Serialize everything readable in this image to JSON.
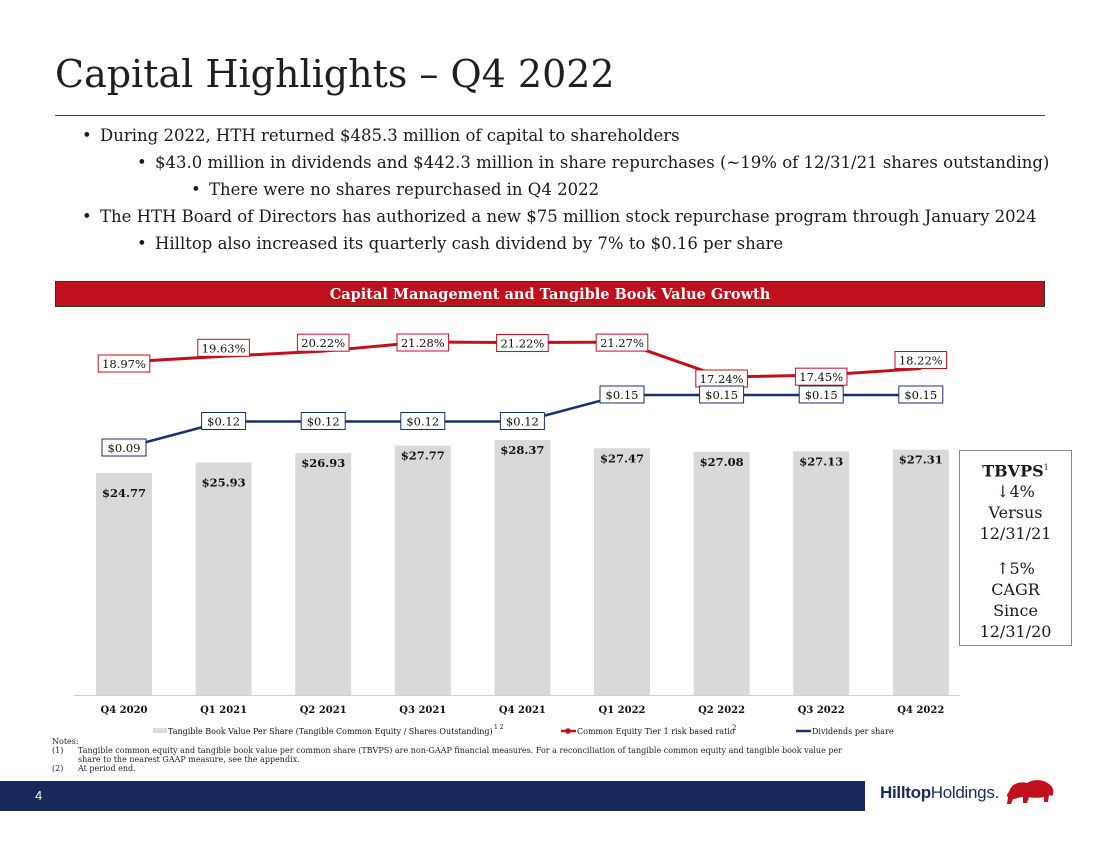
{
  "title": "Capital Highlights – Q4 2022",
  "bullets": [
    {
      "level": 1,
      "text": "During 2022, HTH returned $485.3 million of capital to shareholders"
    },
    {
      "level": 2,
      "text": "$43.0 million in dividends and $442.3 million in share repurchases (~19% of 12/31/21 shares outstanding)"
    },
    {
      "level": 3,
      "text": "There were no shares repurchased in Q4 2022"
    },
    {
      "level": 1,
      "text": "The HTH Board of Directors has authorized a new $75 million stock repurchase program through January 2024"
    },
    {
      "level": 2,
      "text": "Hilltop also increased its quarterly cash dividend by 7% to $0.16 per share"
    }
  ],
  "banner": "Capital Management and Tangible Book Value Growth",
  "chart_data": {
    "type": "bar",
    "categories": [
      "Q4 2020",
      "Q1 2021",
      "Q2 2021",
      "Q3 2021",
      "Q4 2021",
      "Q1 2022",
      "Q2 2022",
      "Q3 2022",
      "Q4 2022"
    ],
    "series": [
      {
        "name": "Tangible Book Value Per Share (Tangible Common Equity / Shares Outstanding)",
        "type": "bar",
        "color": "#d9d9d9",
        "values": [
          24.77,
          25.93,
          26.93,
          27.77,
          28.37,
          27.47,
          27.08,
          27.13,
          27.31
        ],
        "labels": [
          "$24.77",
          "$25.93",
          "$26.93",
          "$27.77",
          "$28.37",
          "$27.47",
          "$27.08",
          "$27.13",
          "$27.31"
        ]
      },
      {
        "name": "Common Equity Tier 1 risk based ratio",
        "type": "line",
        "color": "#c0101e",
        "values": [
          18.97,
          19.63,
          20.22,
          21.28,
          21.22,
          21.27,
          17.24,
          17.45,
          18.22
        ],
        "labels": [
          "18.97%",
          "19.63%",
          "20.22%",
          "21.28%",
          "21.22%",
          "21.27%",
          "17.24%",
          "17.45%",
          "18.22%"
        ]
      },
      {
        "name": "Dividends per share",
        "type": "line",
        "color": "#1c2f6b",
        "values": [
          0.09,
          0.12,
          0.12,
          0.12,
          0.12,
          0.15,
          0.15,
          0.15,
          0.15
        ],
        "labels": [
          "$0.09",
          "$0.12",
          "$0.12",
          "$0.12",
          "$0.12",
          "$0.15",
          "$0.15",
          "$0.15",
          "$0.15"
        ]
      }
    ],
    "legend": [
      {
        "label": "Tangible Book Value Per Share (Tangible Common Equity / Shares Outstanding)",
        "sup": "1 2"
      },
      {
        "label": "Common Equity Tier 1 risk based ratio",
        "sup": "2"
      },
      {
        "label": "Dividends per share",
        "sup": ""
      }
    ],
    "legend_position": "bottom"
  },
  "callout": {
    "title": "TBVPS",
    "title_sup": "1",
    "line1": "↓4%",
    "line2": "Versus",
    "line3": "12/31/21",
    "line4": "↑5%",
    "line5": "CAGR",
    "line6": "Since",
    "line7": "12/31/20"
  },
  "notes": {
    "heading": "Notes:",
    "items": [
      {
        "num": "(1)",
        "text": "Tangible common equity and tangible book value per common share (TBVPS) are non-GAAP financial measures. For a reconciliation of tangible common equity and tangible book value per share to the nearest GAAP measure, see the appendix."
      },
      {
        "num": "(2)",
        "text": "At period end."
      }
    ]
  },
  "footer": {
    "page": "4",
    "logo_part1": "Hilltop",
    "logo_part2": "Holdings."
  },
  "colors": {
    "accent": "#c0101e",
    "navy": "#18285a",
    "bar": "#d9d9d9"
  }
}
